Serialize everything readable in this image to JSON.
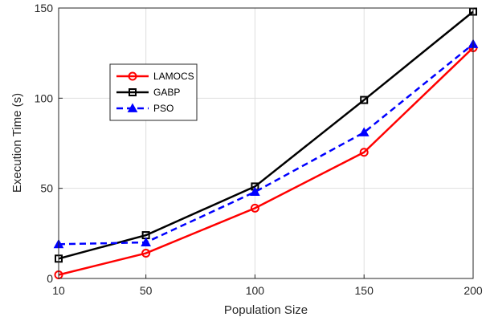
{
  "chart_data": {
    "type": "line",
    "title": "",
    "xlabel": "Population Size",
    "ylabel": "Execution Time (s)",
    "x": [
      10,
      50,
      100,
      150,
      200
    ],
    "x_tick_labels": [
      "10",
      "50",
      "100",
      "150",
      "200"
    ],
    "y_ticks": [
      0,
      50,
      100,
      150
    ],
    "y_tick_labels": [
      "0",
      "50",
      "100",
      "150"
    ],
    "ylim": [
      0,
      150
    ],
    "grid": true,
    "legend_placement": "upper-left",
    "series": [
      {
        "name": "LAMOCS",
        "values": [
          2,
          14,
          39,
          70,
          128
        ],
        "color": "#ff0000",
        "marker": "circle",
        "line": "solid"
      },
      {
        "name": "GABP",
        "values": [
          11,
          24,
          51,
          99,
          148
        ],
        "color": "#000000",
        "marker": "square",
        "line": "solid"
      },
      {
        "name": "PSO",
        "values": [
          19,
          20,
          48,
          81,
          130
        ],
        "color": "#0000ff",
        "marker": "triangle",
        "line": "dashed"
      }
    ]
  }
}
